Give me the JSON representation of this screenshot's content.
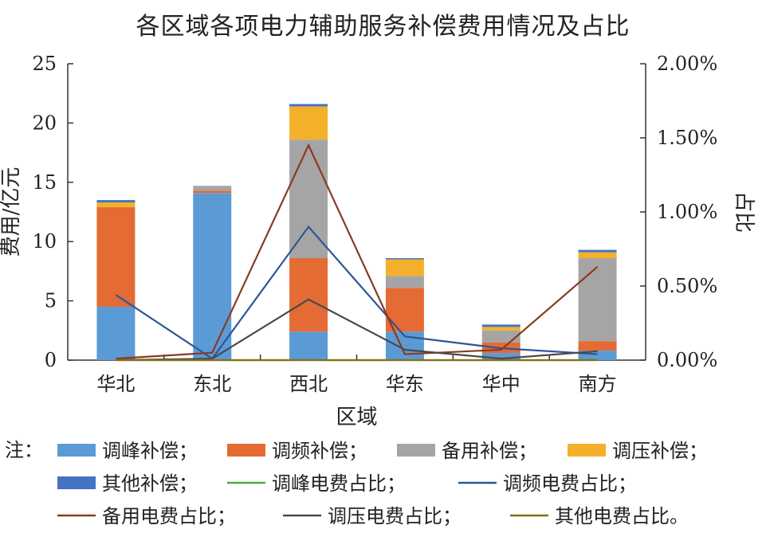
{
  "chart_data": {
    "type": "bar",
    "title": "各区域各项电力辅助服务补偿费用情况及占比",
    "xlabel": "区域",
    "ylabel": "费用/亿元",
    "y2label": "占比",
    "categories": [
      "华北",
      "东北",
      "西北",
      "华东",
      "华中",
      "南方"
    ],
    "ylim": [
      0,
      25
    ],
    "yticks": [
      "0",
      "5",
      "10",
      "15",
      "20",
      "25"
    ],
    "y2lim": [
      0,
      0.02
    ],
    "y2ticks": [
      "0.00%",
      "0.50%",
      "1.00%",
      "1.50%",
      "2.00%"
    ],
    "stacked": true,
    "bar_series": [
      {
        "name": "调峰补偿",
        "color": "#5b9bd5",
        "values": [
          4.5,
          14.1,
          2.4,
          2.4,
          0.6,
          0.8
        ]
      },
      {
        "name": "调频补偿",
        "color": "#e46b34",
        "values": [
          8.4,
          0.2,
          6.2,
          3.7,
          0.9,
          0.8
        ]
      },
      {
        "name": "备用补偿",
        "color": "#a5a5a5",
        "values": [
          0.0,
          0.4,
          10.0,
          1.0,
          1.0,
          7.0
        ]
      },
      {
        "name": "调压补偿",
        "color": "#f3b02a",
        "values": [
          0.4,
          0.0,
          2.8,
          1.4,
          0.3,
          0.5
        ]
      },
      {
        "name": "其他补偿",
        "color": "#4472c4",
        "values": [
          0.2,
          0.0,
          0.2,
          0.1,
          0.2,
          0.2
        ]
      }
    ],
    "line_series": [
      {
        "name": "调峰电费占比",
        "color": "#4caf3a",
        "values": [
          0.0,
          0.0,
          0.0,
          0.0,
          0.0,
          0.0
        ]
      },
      {
        "name": "调频电费占比",
        "color": "#2e5596",
        "values": [
          0.0044,
          0.0001,
          0.009,
          0.0016,
          0.0008,
          0.0004
        ]
      },
      {
        "name": "备用电费占比",
        "color": "#8b3a22",
        "values": [
          0.0001,
          0.0005,
          0.0145,
          0.0004,
          0.0007,
          0.0063
        ]
      },
      {
        "name": "调压电费占比",
        "color": "#4a4a4a",
        "values": [
          0.0,
          0.0001,
          0.0041,
          0.0007,
          0.0001,
          0.0006
        ]
      },
      {
        "name": "其他电费占比",
        "color": "#8a6d1a",
        "values": [
          0.0,
          0.0,
          0.0,
          0.0,
          0.0,
          0.0
        ]
      }
    ],
    "grid": false
  },
  "legend": {
    "prefix": "注：",
    "items": [
      {
        "label": "调峰补偿；",
        "kind": "box",
        "color": "#5b9bd5"
      },
      {
        "label": "调频补偿；",
        "kind": "box",
        "color": "#e46b34"
      },
      {
        "label": "备用补偿；",
        "kind": "box",
        "color": "#a5a5a5"
      },
      {
        "label": "调压补偿；",
        "kind": "box",
        "color": "#f3b02a"
      },
      {
        "label": "其他补偿；",
        "kind": "box",
        "color": "#4472c4"
      },
      {
        "label": "调峰电费占比；",
        "kind": "line",
        "color": "#4caf3a"
      },
      {
        "label": "调频电费占比；",
        "kind": "line",
        "color": "#2e5596"
      },
      {
        "label": "备用电费占比；",
        "kind": "line",
        "color": "#8b3a22"
      },
      {
        "label": "调压电费占比；",
        "kind": "line",
        "color": "#4a4a4a"
      },
      {
        "label": "其他电费占比。",
        "kind": "line",
        "color": "#8a6d1a"
      }
    ]
  }
}
